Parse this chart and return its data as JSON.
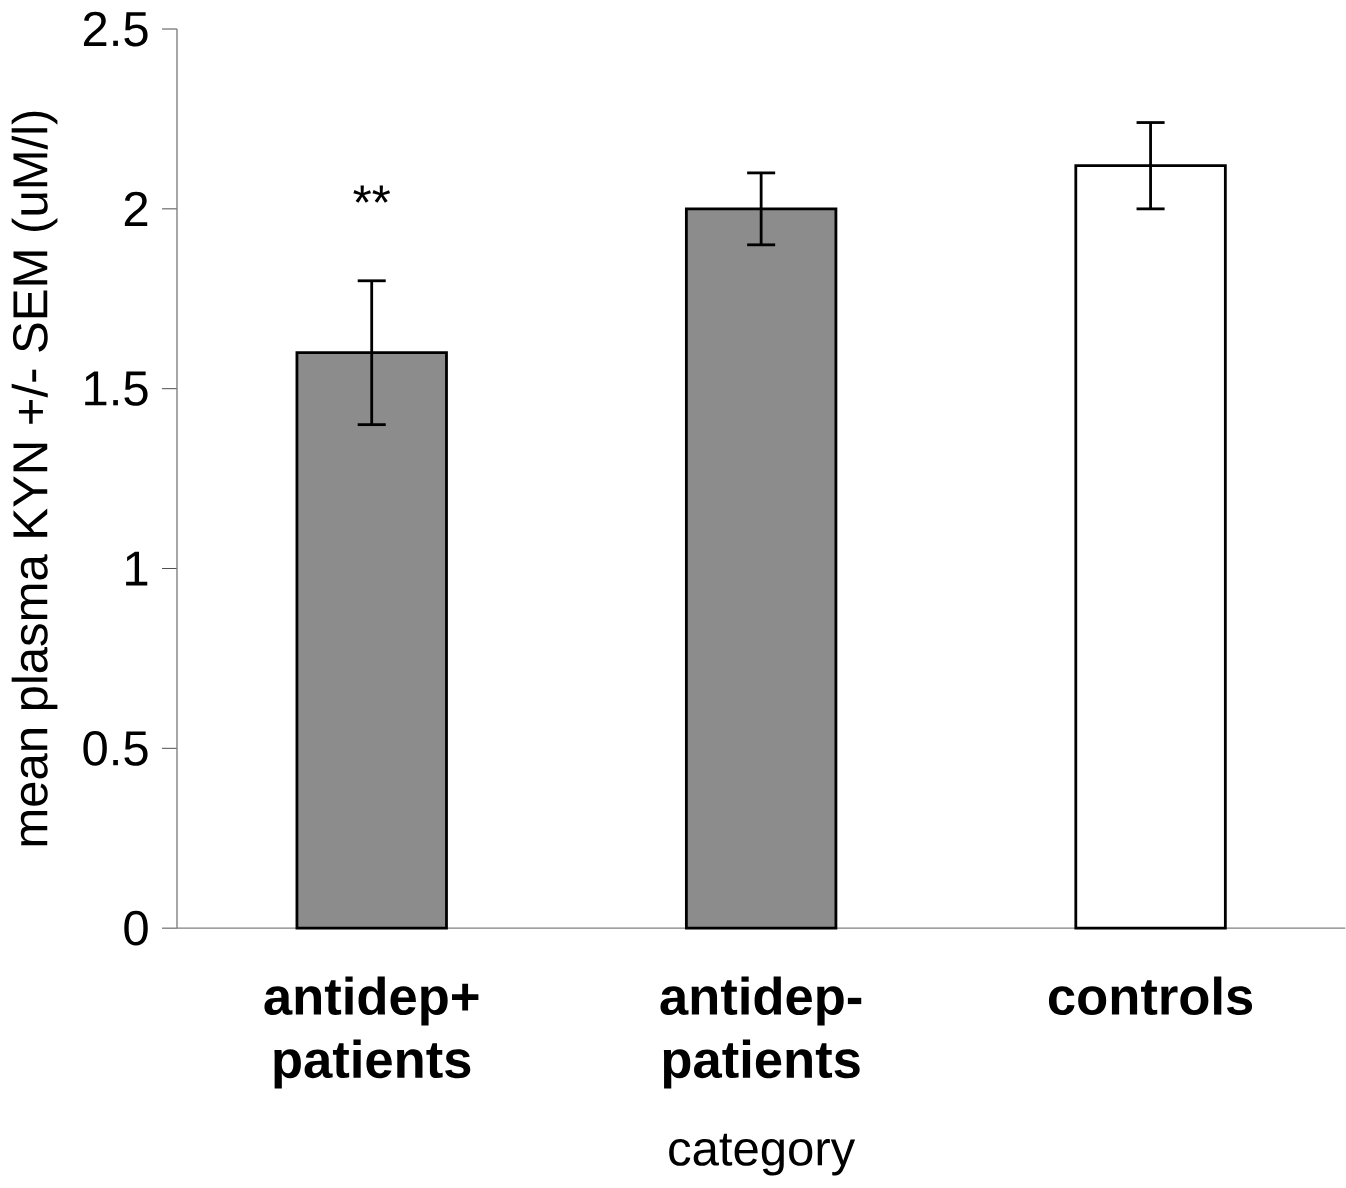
{
  "chart_data": {
    "type": "bar",
    "xlabel": "category",
    "ylabel": "mean plasma KYN +/- SEM (uM/l)",
    "categories": [
      "antidep+ patients",
      "antidep- patients",
      "controls"
    ],
    "values": [
      1.6,
      2.0,
      2.12
    ],
    "errors": [
      0.2,
      0.1,
      0.12
    ],
    "colors": [
      "#8c8c8c",
      "#8c8c8c",
      "#ffffff"
    ],
    "ylim": [
      0,
      2.5
    ],
    "yticks": [
      0,
      0.5,
      1,
      1.5,
      2,
      2.5
    ],
    "annotations": [
      "**"
    ]
  }
}
